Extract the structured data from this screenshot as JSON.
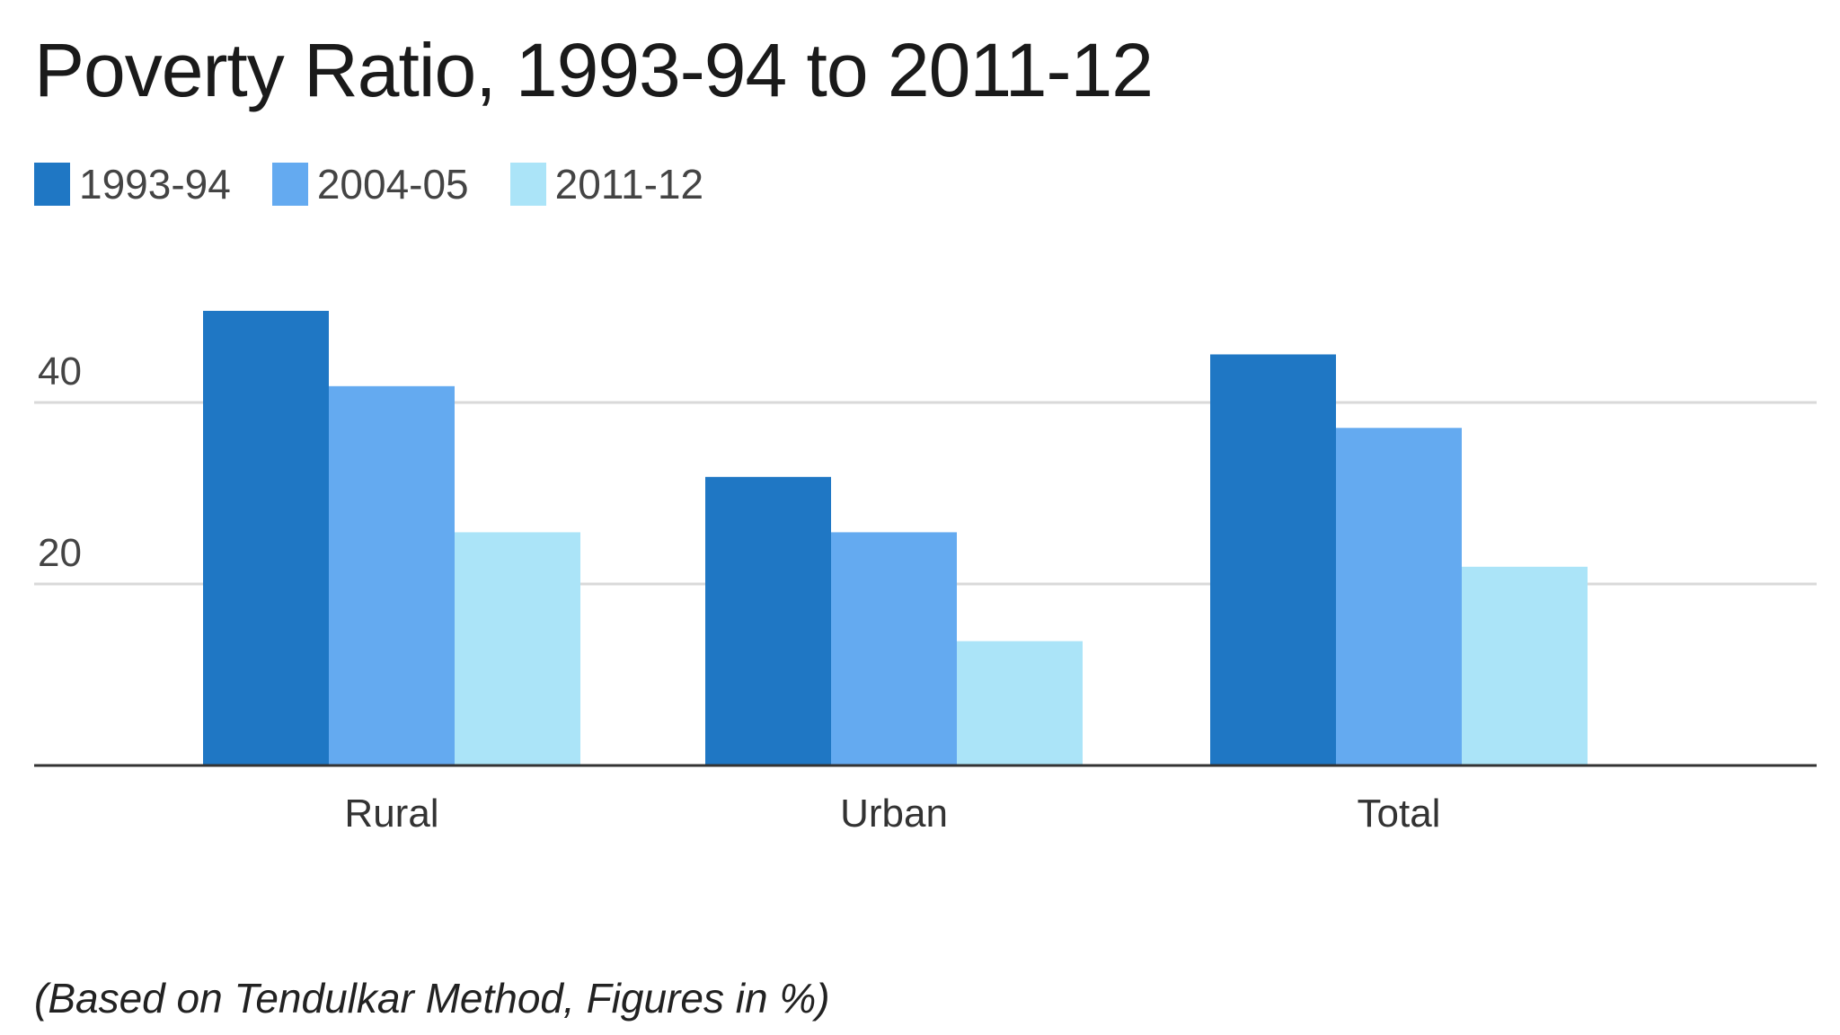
{
  "chart_data": {
    "type": "bar",
    "title": "Poverty Ratio, 1993-94 to 2011-12",
    "categories": [
      "Rural",
      "Urban",
      "Total"
    ],
    "series": [
      {
        "name": "1993-94",
        "color": "#1f77c4",
        "values": [
          50.1,
          31.8,
          45.3
        ]
      },
      {
        "name": "2004-05",
        "color": "#64aaf0",
        "values": [
          41.8,
          25.7,
          37.2
        ]
      },
      {
        "name": "2011-12",
        "color": "#abe4f8",
        "values": [
          25.7,
          13.7,
          21.9
        ]
      }
    ],
    "yticks": [
      20,
      40
    ],
    "ylim": [
      0,
      55
    ],
    "xlabel": "",
    "ylabel": "",
    "grid": true,
    "legend": "top-left",
    "footnote": "(Based on Tendulkar Method, Figures in %)"
  }
}
